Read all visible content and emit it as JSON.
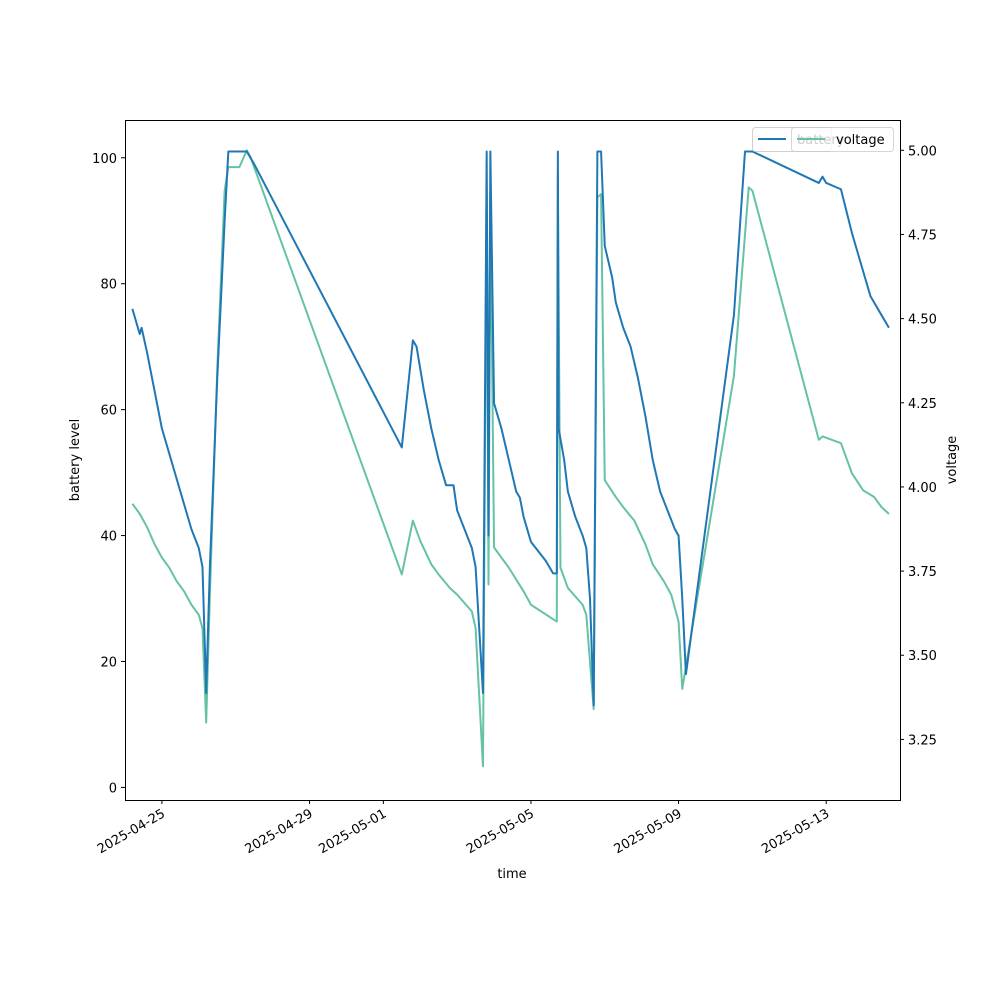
{
  "chart_data": {
    "type": "line",
    "xlabel": "time",
    "ylabel_left": "battery level",
    "ylabel_right": "voltage",
    "x_ticks": [
      "2025-04-25",
      "2025-04-29",
      "2025-05-01",
      "2025-05-05",
      "2025-05-09",
      "2025-05-13"
    ],
    "y_left_ticks": [
      "0",
      "20",
      "40",
      "60",
      "80",
      "100"
    ],
    "y_right_ticks": [
      "3.25",
      "3.50",
      "3.75",
      "4.00",
      "4.25",
      "4.50",
      "4.75",
      "5.00"
    ],
    "ylim_left": [
      -2,
      106
    ],
    "ylim_right": [
      3.07,
      5.09
    ],
    "x_range": [
      "2025-04-24 00:00",
      "2025-05-15 00:00"
    ],
    "legend_placement": "top-right",
    "legend_entries": [
      "battery",
      "voltage"
    ],
    "series": [
      {
        "name": "battery",
        "axis": "left",
        "color": "#1f77b4",
        "points": [
          [
            "2025-04-24 04:48",
            76
          ],
          [
            "2025-04-24 07:12",
            74
          ],
          [
            "2025-04-24 09:36",
            72
          ],
          [
            "2025-04-24 10:48",
            73
          ],
          [
            "2025-04-24 14:24",
            69
          ],
          [
            "2025-04-24 19:12",
            63
          ],
          [
            "2025-04-25 00:00",
            57
          ],
          [
            "2025-04-25 04:48",
            53
          ],
          [
            "2025-04-25 09:36",
            49
          ],
          [
            "2025-04-25 14:24",
            45
          ],
          [
            "2025-04-25 19:12",
            41
          ],
          [
            "2025-04-26 00:00",
            38
          ],
          [
            "2025-04-26 02:24",
            35
          ],
          [
            "2025-04-26 04:48",
            15
          ],
          [
            "2025-04-26 07:12",
            35
          ],
          [
            "2025-04-26 12:00",
            65
          ],
          [
            "2025-04-26 16:48",
            90
          ],
          [
            "2025-04-26 19:12",
            101
          ],
          [
            "2025-04-27 07:12",
            101
          ],
          [
            "2025-04-27 12:00",
            99
          ],
          [
            "2025-05-01 12:00",
            54
          ],
          [
            "2025-05-01 19:12",
            71
          ],
          [
            "2025-05-01 21:36",
            70
          ],
          [
            "2025-05-02 02:24",
            63
          ],
          [
            "2025-05-02 07:12",
            57
          ],
          [
            "2025-05-02 12:00",
            52
          ],
          [
            "2025-05-02 16:48",
            48
          ],
          [
            "2025-05-02 21:36",
            48
          ],
          [
            "2025-05-03 00:00",
            44
          ],
          [
            "2025-05-03 09:36",
            38
          ],
          [
            "2025-05-03 12:00",
            35
          ],
          [
            "2025-05-03 16:48",
            15
          ],
          [
            "2025-05-03 19:12",
            101
          ],
          [
            "2025-05-03 20:24",
            40
          ],
          [
            "2025-05-03 21:36",
            101
          ],
          [
            "2025-05-04 00:00",
            61
          ],
          [
            "2025-05-04 04:48",
            57
          ],
          [
            "2025-05-04 09:36",
            52
          ],
          [
            "2025-05-04 14:24",
            47
          ],
          [
            "2025-05-04 16:48",
            46
          ],
          [
            "2025-05-04 19:12",
            43
          ],
          [
            "2025-05-05 00:00",
            39
          ],
          [
            "2025-05-05 09:36",
            36
          ],
          [
            "2025-05-05 14:24",
            34
          ],
          [
            "2025-05-05 16:48",
            34
          ],
          [
            "2025-05-05 17:30",
            101
          ],
          [
            "2025-05-05 18:00",
            57
          ],
          [
            "2025-05-05 21:36",
            52
          ],
          [
            "2025-05-06 00:00",
            47
          ],
          [
            "2025-05-06 04:48",
            43
          ],
          [
            "2025-05-06 09:36",
            40
          ],
          [
            "2025-05-06 12:00",
            38
          ],
          [
            "2025-05-06 14:24",
            30
          ],
          [
            "2025-05-06 16:48",
            13
          ],
          [
            "2025-05-06 19:12",
            101
          ],
          [
            "2025-05-06 21:36",
            101
          ],
          [
            "2025-05-07 00:00",
            86
          ],
          [
            "2025-05-07 04:48",
            81
          ],
          [
            "2025-05-07 07:12",
            77
          ],
          [
            "2025-05-07 12:00",
            73
          ],
          [
            "2025-05-07 16:48",
            70
          ],
          [
            "2025-05-07 21:36",
            65
          ],
          [
            "2025-05-08 02:24",
            59
          ],
          [
            "2025-05-08 07:12",
            52
          ],
          [
            "2025-05-08 12:00",
            47
          ],
          [
            "2025-05-08 16:48",
            44
          ],
          [
            "2025-05-08 21:36",
            41
          ],
          [
            "2025-05-09 00:00",
            40
          ],
          [
            "2025-05-09 02:24",
            30
          ],
          [
            "2025-05-09 04:48",
            18
          ],
          [
            "2025-05-10 12:00",
            75
          ],
          [
            "2025-05-10 19:12",
            101
          ],
          [
            "2025-05-11 00:00",
            101
          ],
          [
            "2025-05-12 19:12",
            96
          ],
          [
            "2025-05-12 21:36",
            97
          ],
          [
            "2025-05-13 00:00",
            96
          ],
          [
            "2025-05-13 09:36",
            95
          ],
          [
            "2025-05-13 16:48",
            88
          ],
          [
            "2025-05-14 00:00",
            82
          ],
          [
            "2025-05-14 04:48",
            78
          ],
          [
            "2025-05-14 12:00",
            75
          ],
          [
            "2025-05-14 16:48",
            73
          ]
        ]
      },
      {
        "name": "voltage",
        "axis": "right",
        "color": "#66c2a5",
        "points": [
          [
            "2025-04-24 04:48",
            3.95
          ],
          [
            "2025-04-24 09:36",
            3.92
          ],
          [
            "2025-04-24 14:24",
            3.88
          ],
          [
            "2025-04-24 19:12",
            3.83
          ],
          [
            "2025-04-25 00:00",
            3.79
          ],
          [
            "2025-04-25 04:48",
            3.76
          ],
          [
            "2025-04-25 09:36",
            3.72
          ],
          [
            "2025-04-25 14:24",
            3.69
          ],
          [
            "2025-04-25 19:12",
            3.65
          ],
          [
            "2025-04-26 00:00",
            3.62
          ],
          [
            "2025-04-26 02:24",
            3.58
          ],
          [
            "2025-04-26 04:48",
            3.3
          ],
          [
            "2025-04-26 07:12",
            3.68
          ],
          [
            "2025-04-26 12:00",
            4.35
          ],
          [
            "2025-04-26 16:48",
            4.88
          ],
          [
            "2025-04-26 19:12",
            4.95
          ],
          [
            "2025-04-27 02:24",
            4.95
          ],
          [
            "2025-04-27 07:12",
            5.0
          ],
          [
            "2025-04-27 09:36",
            4.98
          ],
          [
            "2025-05-01 12:00",
            3.74
          ],
          [
            "2025-05-01 19:12",
            3.9
          ],
          [
            "2025-05-02 00:00",
            3.84
          ],
          [
            "2025-05-02 07:12",
            3.77
          ],
          [
            "2025-05-02 12:00",
            3.74
          ],
          [
            "2025-05-02 19:12",
            3.7
          ],
          [
            "2025-05-03 00:00",
            3.68
          ],
          [
            "2025-05-03 09:36",
            3.63
          ],
          [
            "2025-05-03 12:00",
            3.58
          ],
          [
            "2025-05-03 16:48",
            3.17
          ],
          [
            "2025-05-03 19:12",
            4.89
          ],
          [
            "2025-05-03 20:24",
            3.71
          ],
          [
            "2025-05-03 21:36",
            4.87
          ],
          [
            "2025-05-04 00:00",
            3.82
          ],
          [
            "2025-05-04 09:36",
            3.76
          ],
          [
            "2025-05-04 19:12",
            3.69
          ],
          [
            "2025-05-05 00:00",
            3.65
          ],
          [
            "2025-05-05 16:48",
            3.6
          ],
          [
            "2025-05-05 17:30",
            4.93
          ],
          [
            "2025-05-05 19:12",
            3.76
          ],
          [
            "2025-05-06 00:00",
            3.7
          ],
          [
            "2025-05-06 09:36",
            3.65
          ],
          [
            "2025-05-06 12:00",
            3.62
          ],
          [
            "2025-05-06 16:48",
            3.34
          ],
          [
            "2025-05-06 19:12",
            4.86
          ],
          [
            "2025-05-06 21:36",
            4.87
          ],
          [
            "2025-05-07 00:00",
            4.02
          ],
          [
            "2025-05-07 07:12",
            3.97
          ],
          [
            "2025-05-07 12:00",
            3.94
          ],
          [
            "2025-05-07 19:12",
            3.9
          ],
          [
            "2025-05-08 02:24",
            3.83
          ],
          [
            "2025-05-08 07:12",
            3.77
          ],
          [
            "2025-05-08 14:24",
            3.72
          ],
          [
            "2025-05-08 19:12",
            3.68
          ],
          [
            "2025-05-09 00:00",
            3.6
          ],
          [
            "2025-05-09 02:24",
            3.4
          ],
          [
            "2025-05-10 12:00",
            4.33
          ],
          [
            "2025-05-10 21:36",
            4.89
          ],
          [
            "2025-05-11 00:00",
            4.88
          ],
          [
            "2025-05-12 19:12",
            4.14
          ],
          [
            "2025-05-12 21:36",
            4.15
          ],
          [
            "2025-05-13 09:36",
            4.13
          ],
          [
            "2025-05-13 16:48",
            4.04
          ],
          [
            "2025-05-14 00:00",
            3.99
          ],
          [
            "2025-05-14 07:12",
            3.97
          ],
          [
            "2025-05-14 12:00",
            3.94
          ],
          [
            "2025-05-14 16:48",
            3.92
          ]
        ]
      }
    ]
  }
}
